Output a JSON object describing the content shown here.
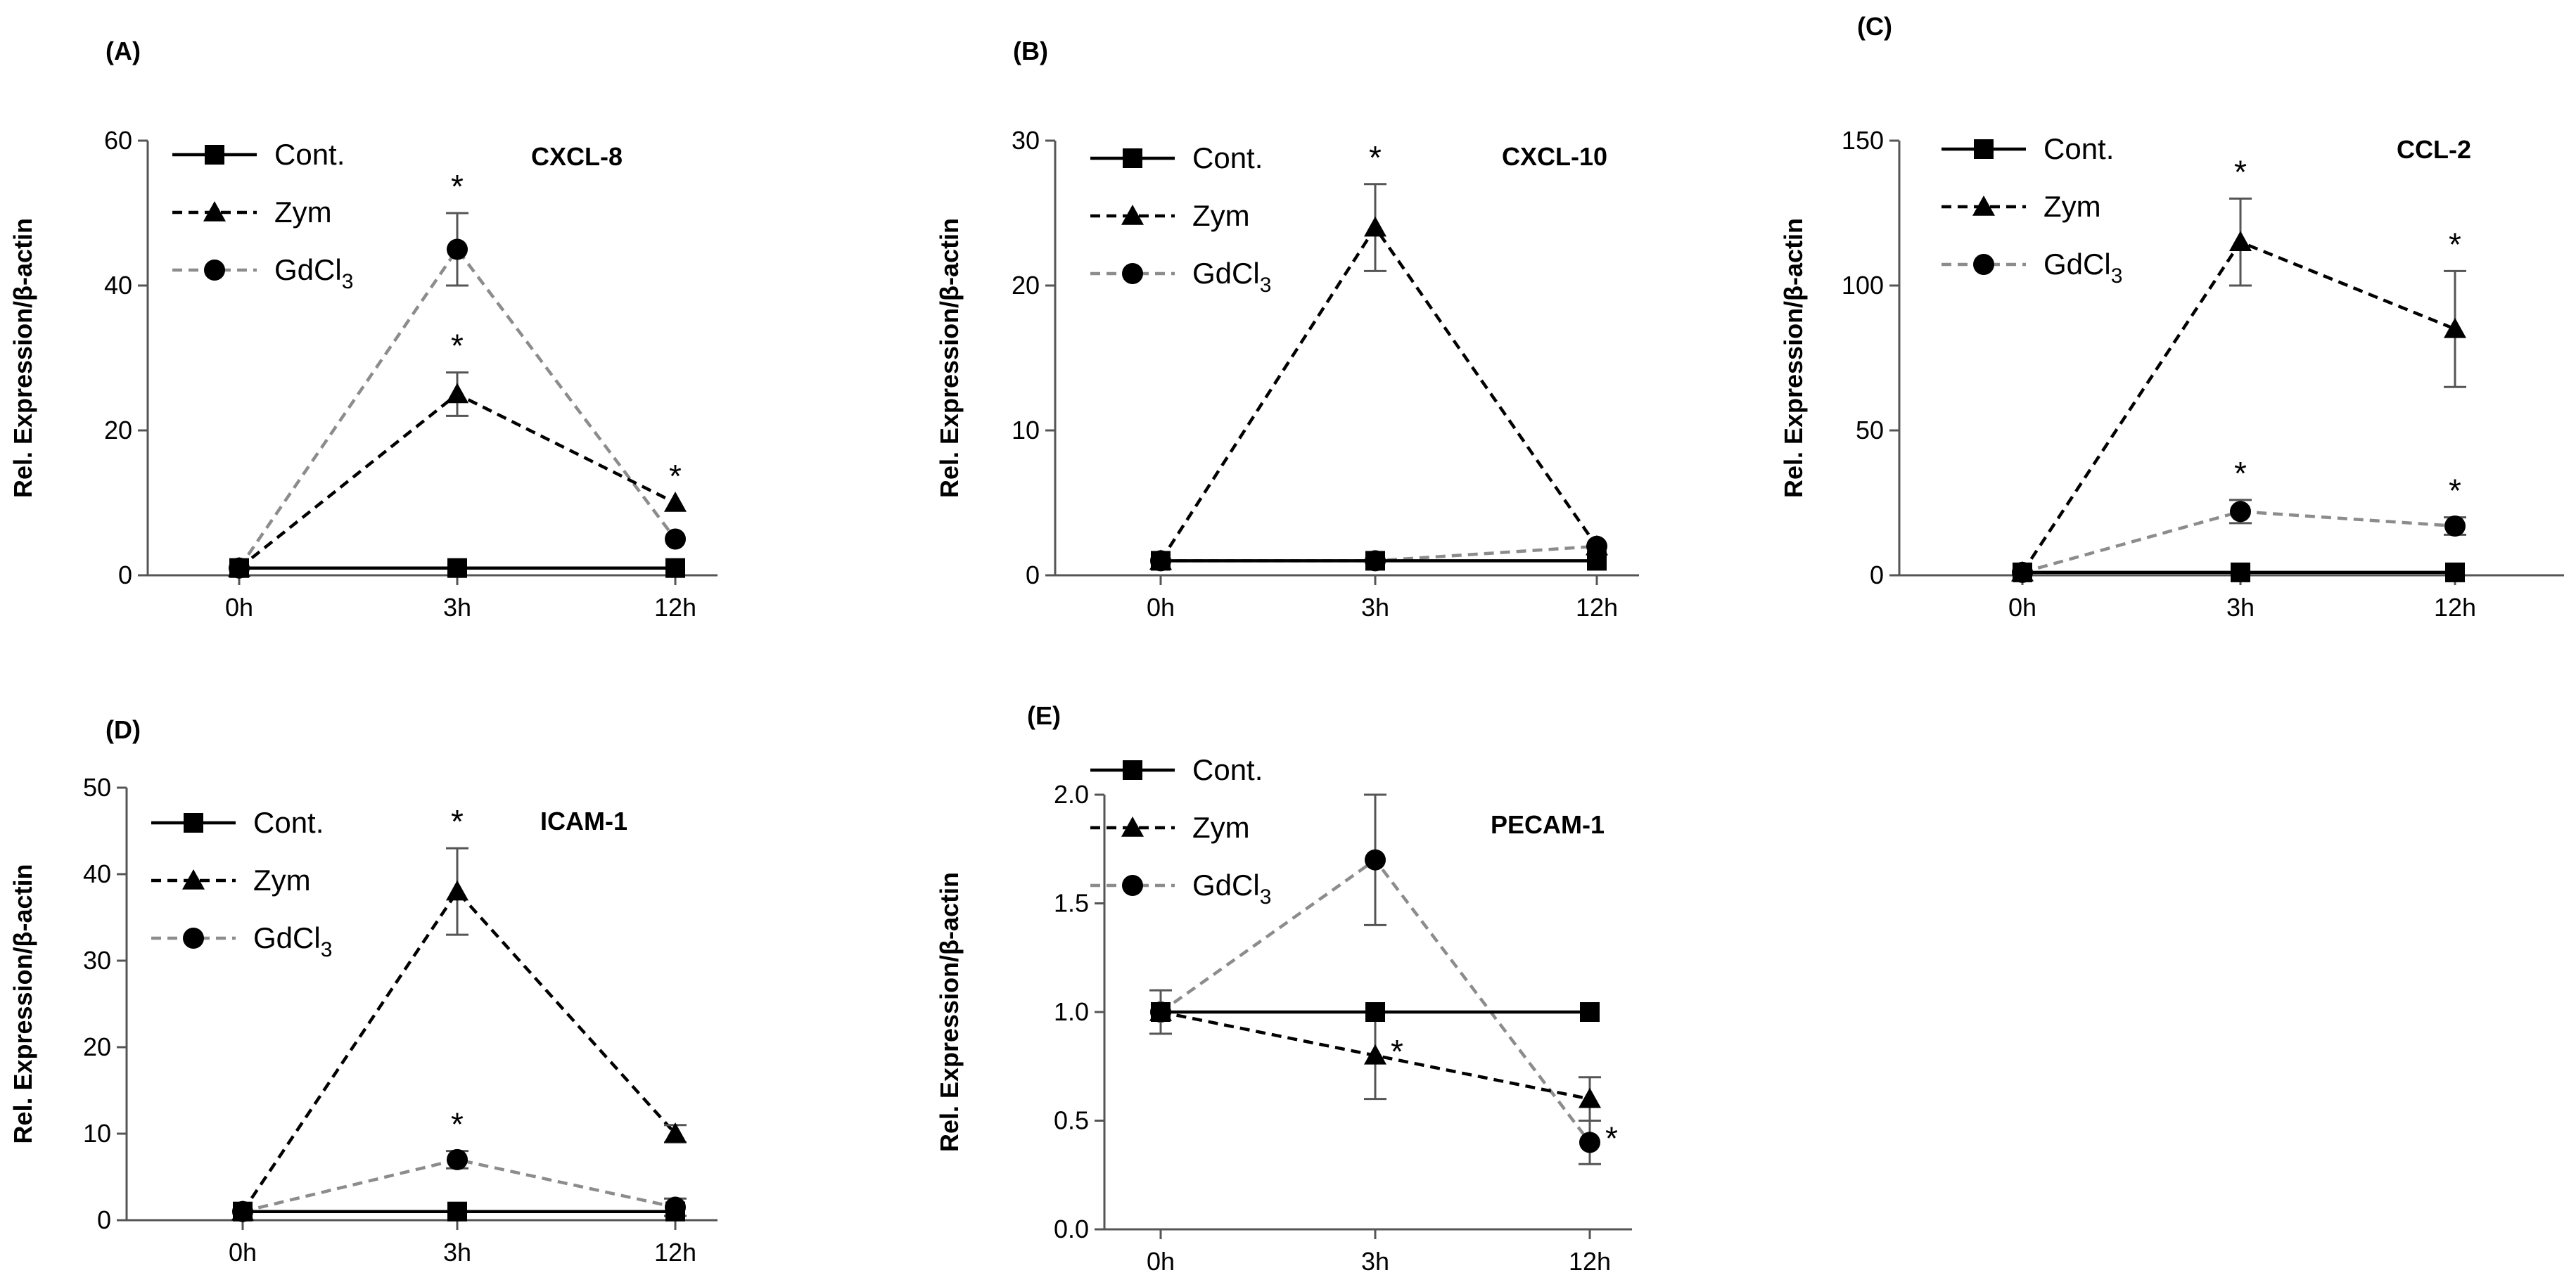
{
  "figure": {
    "description_panels": [
      "A",
      "B",
      "C",
      "D",
      "E"
    ]
  },
  "styles": {
    "series_colors": {
      "Cont.": "#000000",
      "Zym": "#000000",
      "GdCl3": "#8c8c8c"
    }
  },
  "chart_data": [
    {
      "panel": "(A)",
      "type": "line",
      "title": "CXCL-8",
      "xlabel": "",
      "ylabel": "Rel. Expression/β-actin",
      "categories": [
        "0h",
        "3h",
        "12h"
      ],
      "ylim": [
        0,
        60
      ],
      "yticks": [
        0,
        20,
        40,
        60
      ],
      "ytick_labels": [
        "0",
        "20",
        "40",
        "60"
      ],
      "series": [
        {
          "name": "Cont.",
          "marker": "square",
          "line": "solid",
          "color": "#000000",
          "values": [
            1,
            1,
            1
          ],
          "err": [
            0,
            0,
            0
          ],
          "star": [
            false,
            false,
            false
          ]
        },
        {
          "name": "Zym",
          "marker": "triangle",
          "line": "dashed",
          "color": "#000000",
          "values": [
            1,
            25,
            10
          ],
          "err": [
            0,
            3,
            0
          ],
          "star": [
            false,
            true,
            true
          ]
        },
        {
          "name": "GdCl3",
          "marker": "circle",
          "line": "dashed",
          "color": "#8c8c8c",
          "values": [
            1,
            45,
            5
          ],
          "err": [
            0,
            5,
            0
          ],
          "star": [
            false,
            true,
            false
          ]
        }
      ]
    },
    {
      "panel": "(B)",
      "type": "line",
      "title": "CXCL-10",
      "xlabel": "",
      "ylabel": "Rel. Expression/β-actin",
      "categories": [
        "0h",
        "3h",
        "12h"
      ],
      "ylim": [
        0,
        30
      ],
      "yticks": [
        0,
        10,
        20,
        30
      ],
      "ytick_labels": [
        "0",
        "10",
        "20",
        "30"
      ],
      "series": [
        {
          "name": "Cont.",
          "marker": "square",
          "line": "solid",
          "color": "#000000",
          "values": [
            1,
            1,
            1
          ],
          "err": [
            0,
            0,
            0
          ],
          "star": [
            false,
            false,
            false
          ]
        },
        {
          "name": "Zym",
          "marker": "triangle",
          "line": "dashed",
          "color": "#000000",
          "values": [
            1,
            24,
            2
          ],
          "err": [
            0,
            3,
            0
          ],
          "star": [
            false,
            true,
            false
          ]
        },
        {
          "name": "GdCl3",
          "marker": "circle",
          "line": "dashed",
          "color": "#8c8c8c",
          "values": [
            1,
            1,
            2
          ],
          "err": [
            0,
            0,
            0
          ],
          "star": [
            false,
            false,
            false
          ]
        }
      ]
    },
    {
      "panel": "(C)",
      "type": "line",
      "title": "CCL-2",
      "xlabel": "",
      "ylabel": "Rel. Expression/β-actin",
      "categories": [
        "0h",
        "3h",
        "12h"
      ],
      "ylim": [
        0,
        150
      ],
      "yticks": [
        0,
        50,
        100,
        150
      ],
      "ytick_labels": [
        "0",
        "50",
        "100",
        "150"
      ],
      "series": [
        {
          "name": "Cont.",
          "marker": "square",
          "line": "solid",
          "color": "#000000",
          "values": [
            1,
            1,
            1
          ],
          "err": [
            0,
            0,
            0
          ],
          "star": [
            false,
            false,
            false
          ]
        },
        {
          "name": "Zym",
          "marker": "triangle",
          "line": "dashed",
          "color": "#000000",
          "values": [
            1,
            115,
            85
          ],
          "err": [
            0,
            15,
            20
          ],
          "star": [
            false,
            true,
            true
          ]
        },
        {
          "name": "GdCl3",
          "marker": "circle",
          "line": "dashed",
          "color": "#8c8c8c",
          "values": [
            1,
            22,
            17
          ],
          "err": [
            0,
            4,
            3
          ],
          "star": [
            false,
            true,
            true
          ]
        }
      ]
    },
    {
      "panel": "(D)",
      "type": "line",
      "title": "ICAM-1",
      "xlabel": "",
      "ylabel": "Rel. Expression/β-actin",
      "categories": [
        "0h",
        "3h",
        "12h"
      ],
      "ylim": [
        0,
        50
      ],
      "yticks": [
        0,
        10,
        20,
        30,
        40,
        50
      ],
      "ytick_labels": [
        "0",
        "10",
        "20",
        "30",
        "40",
        "50"
      ],
      "series": [
        {
          "name": "Cont.",
          "marker": "square",
          "line": "solid",
          "color": "#000000",
          "values": [
            1,
            1,
            1
          ],
          "err": [
            0,
            0,
            0
          ],
          "star": [
            false,
            false,
            false
          ]
        },
        {
          "name": "Zym",
          "marker": "triangle",
          "line": "dashed",
          "color": "#000000",
          "values": [
            1,
            38,
            10
          ],
          "err": [
            0,
            5,
            1
          ],
          "star": [
            false,
            true,
            false
          ]
        },
        {
          "name": "GdCl3",
          "marker": "circle",
          "line": "dashed",
          "color": "#8c8c8c",
          "values": [
            1,
            7,
            1.5
          ],
          "err": [
            0,
            1,
            1
          ],
          "star": [
            false,
            true,
            false
          ]
        }
      ]
    },
    {
      "panel": "(E)",
      "type": "line",
      "title": "PECAM-1",
      "xlabel": "",
      "ylabel": "Rel. Expression/β-actin",
      "categories": [
        "0h",
        "3h",
        "12h"
      ],
      "ylim": [
        0,
        2.0
      ],
      "yticks": [
        0,
        0.5,
        1.0,
        1.5,
        2.0
      ],
      "ytick_labels": [
        "0.0",
        "0.5",
        "1.0",
        "1.5",
        "2.0"
      ],
      "series": [
        {
          "name": "Cont.",
          "marker": "square",
          "line": "solid",
          "color": "#000000",
          "values": [
            1,
            1,
            1
          ],
          "err": [
            0.1,
            0,
            0
          ],
          "star": [
            false,
            false,
            false
          ]
        },
        {
          "name": "Zym",
          "marker": "triangle",
          "line": "dashed",
          "color": "#000000",
          "values": [
            1,
            0.8,
            0.6
          ],
          "err": [
            0,
            0.2,
            0.1
          ],
          "star": [
            false,
            true,
            false
          ]
        },
        {
          "name": "GdCl3",
          "marker": "circle",
          "line": "dashed",
          "color": "#8c8c8c",
          "values": [
            1,
            1.7,
            0.4
          ],
          "err": [
            0,
            0.3,
            0.1
          ],
          "star": [
            false,
            false,
            true
          ]
        }
      ]
    }
  ]
}
